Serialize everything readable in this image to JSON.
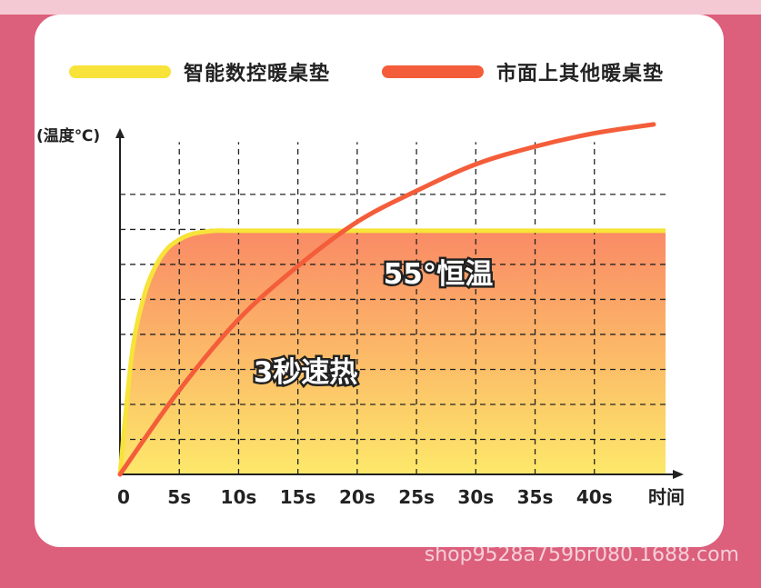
{
  "chart_data": {
    "type": "line",
    "ylabel": "(温度℃)",
    "xlabel": "时间",
    "x_ticks": [
      "0",
      "5s",
      "10s",
      "15s",
      "20s",
      "25s",
      "30s",
      "35s",
      "40s"
    ],
    "xlim": [
      0,
      46
    ],
    "ylim": [
      0,
      80
    ],
    "grid": true,
    "legend_position": "top",
    "series": [
      {
        "name": "智能数控暖桌垫",
        "color": "#f7e33a",
        "filled": true,
        "x": [
          0,
          1,
          2,
          3,
          4,
          5,
          6,
          7,
          8,
          10,
          20,
          30,
          40,
          46
        ],
        "y": [
          0,
          27,
          40,
          47,
          51,
          53,
          54.2,
          54.7,
          55,
          55,
          55,
          55,
          55,
          55
        ]
      },
      {
        "name": "市面上其他暖桌垫",
        "color": "#f45d3a",
        "filled": false,
        "x": [
          0,
          5,
          10,
          15,
          20,
          25,
          30,
          35,
          40,
          45
        ],
        "y": [
          0,
          19,
          35,
          47,
          57,
          64,
          70,
          74,
          77,
          79
        ]
      }
    ],
    "annotations": [
      "55°恒温",
      "3秒速热"
    ]
  },
  "footer": {
    "watermark": "shop9528a759br080.1688.com"
  }
}
